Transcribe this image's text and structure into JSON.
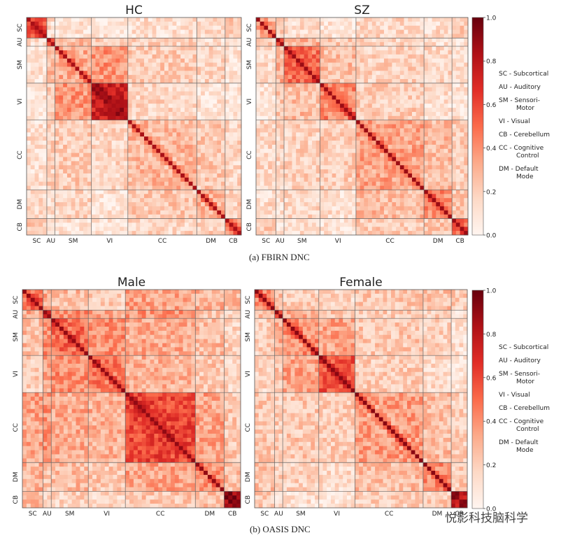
{
  "colors": {
    "cmap": [
      "#fff5f0",
      "#fdd9c6",
      "#fcaa8a",
      "#fb6b4b",
      "#e12d27",
      "#af1117",
      "#67000d"
    ],
    "grid": "#666666",
    "frame": "#555555"
  },
  "networks": [
    {
      "code": "SC",
      "n": 5
    },
    {
      "code": "AU",
      "n": 2
    },
    {
      "code": "SM",
      "n": 9
    },
    {
      "code": "VI",
      "n": 9
    },
    {
      "code": "CC",
      "n": 17
    },
    {
      "code": "DM",
      "n": 7
    },
    {
      "code": "CB",
      "n": 4
    }
  ],
  "legend": [
    {
      "code": "SC",
      "label": "SC - Subcortical"
    },
    {
      "code": "AU",
      "label": "AU - Auditory"
    },
    {
      "code": "SM",
      "label": "SM - Sensori-",
      "cont": "Motor"
    },
    {
      "code": "VI",
      "label": "VI - Visual"
    },
    {
      "code": "CB",
      "label": "CB - Cerebellum"
    },
    {
      "code": "CC",
      "label": "CC - Cognitive",
      "cont": "Control"
    },
    {
      "code": "DM",
      "label": "DM - Default",
      "cont": "Mode"
    }
  ],
  "captions": {
    "a": "(a) FBIRN DNC",
    "b": "(b) OASIS DNC"
  },
  "watermark": "悦影科技脑科学",
  "chart_data": [
    {
      "type": "heatmap",
      "title": "HC",
      "row_labels": [
        "SC",
        "AU",
        "SM",
        "VI",
        "CC",
        "DM",
        "CB"
      ],
      "col_labels": [
        "SC",
        "AU",
        "SM",
        "VI",
        "CC",
        "DM",
        "CB"
      ],
      "block_values": [
        [
          0.52,
          0.12,
          0.1,
          0.09,
          0.12,
          0.14,
          0.22
        ],
        [
          0.12,
          0.45,
          0.28,
          0.2,
          0.18,
          0.12,
          0.08
        ],
        [
          0.1,
          0.28,
          0.32,
          0.38,
          0.2,
          0.16,
          0.1
        ],
        [
          0.09,
          0.2,
          0.38,
          0.72,
          0.16,
          0.1,
          0.08
        ],
        [
          0.12,
          0.18,
          0.2,
          0.16,
          0.28,
          0.22,
          0.16
        ],
        [
          0.14,
          0.12,
          0.16,
          0.1,
          0.22,
          0.3,
          0.18
        ],
        [
          0.22,
          0.08,
          0.1,
          0.08,
          0.16,
          0.18,
          0.4
        ]
      ],
      "diagonal": 0.85,
      "colorbar": {
        "range": [
          0.0,
          1.0
        ],
        "ticks": [
          0.0,
          0.2,
          0.4,
          0.6,
          0.8,
          1.0
        ]
      }
    },
    {
      "type": "heatmap",
      "title": "SZ",
      "row_labels": [
        "SC",
        "AU",
        "SM",
        "VI",
        "CC",
        "DM",
        "CB"
      ],
      "col_labels": [
        "SC",
        "AU",
        "SM",
        "VI",
        "CC",
        "DM",
        "CB"
      ],
      "block_values": [
        [
          0.3,
          0.18,
          0.14,
          0.1,
          0.16,
          0.14,
          0.22
        ],
        [
          0.18,
          0.45,
          0.3,
          0.2,
          0.16,
          0.12,
          0.1
        ],
        [
          0.14,
          0.3,
          0.48,
          0.26,
          0.18,
          0.16,
          0.12
        ],
        [
          0.1,
          0.2,
          0.26,
          0.42,
          0.2,
          0.12,
          0.1
        ],
        [
          0.16,
          0.16,
          0.18,
          0.2,
          0.34,
          0.26,
          0.2
        ],
        [
          0.14,
          0.12,
          0.16,
          0.12,
          0.26,
          0.42,
          0.22
        ],
        [
          0.22,
          0.1,
          0.12,
          0.1,
          0.2,
          0.22,
          0.5
        ]
      ],
      "diagonal": 0.88,
      "colorbar": {
        "range": [
          0.0,
          1.0
        ],
        "ticks": [
          0.0,
          0.2,
          0.4,
          0.6,
          0.8,
          1.0
        ]
      }
    },
    {
      "type": "heatmap",
      "title": "Male",
      "row_labels": [
        "SC",
        "AU",
        "SM",
        "VI",
        "CC",
        "DM",
        "CB"
      ],
      "col_labels": [
        "SC",
        "AU",
        "SM",
        "VI",
        "CC",
        "DM",
        "CB"
      ],
      "block_values": [
        [
          0.48,
          0.32,
          0.26,
          0.2,
          0.34,
          0.3,
          0.28
        ],
        [
          0.32,
          0.7,
          0.4,
          0.34,
          0.38,
          0.24,
          0.16
        ],
        [
          0.26,
          0.4,
          0.5,
          0.4,
          0.32,
          0.26,
          0.18
        ],
        [
          0.2,
          0.34,
          0.4,
          0.46,
          0.3,
          0.22,
          0.16
        ],
        [
          0.34,
          0.38,
          0.32,
          0.3,
          0.6,
          0.34,
          0.22
        ],
        [
          0.3,
          0.24,
          0.26,
          0.22,
          0.34,
          0.38,
          0.24
        ],
        [
          0.28,
          0.16,
          0.18,
          0.16,
          0.22,
          0.24,
          0.78
        ]
      ],
      "diagonal": 0.9,
      "colorbar": null
    },
    {
      "type": "heatmap",
      "title": "Female",
      "row_labels": [
        "SC",
        "AU",
        "SM",
        "VI",
        "CC",
        "DM",
        "CB"
      ],
      "col_labels": [
        "SC",
        "AU",
        "SM",
        "VI",
        "CC",
        "DM",
        "CB"
      ],
      "block_values": [
        [
          0.4,
          0.26,
          0.2,
          0.16,
          0.22,
          0.24,
          0.2
        ],
        [
          0.26,
          0.55,
          0.32,
          0.24,
          0.2,
          0.18,
          0.12
        ],
        [
          0.2,
          0.32,
          0.4,
          0.34,
          0.22,
          0.18,
          0.12
        ],
        [
          0.16,
          0.24,
          0.34,
          0.55,
          0.2,
          0.14,
          0.1
        ],
        [
          0.22,
          0.2,
          0.22,
          0.2,
          0.36,
          0.26,
          0.18
        ],
        [
          0.24,
          0.18,
          0.18,
          0.14,
          0.26,
          0.42,
          0.2
        ],
        [
          0.2,
          0.12,
          0.12,
          0.1,
          0.18,
          0.2,
          0.72
        ]
      ],
      "diagonal": 0.92,
      "colorbar": {
        "range": [
          0.0,
          1.0
        ],
        "ticks": [
          0.0,
          0.2,
          0.4,
          0.6,
          0.8,
          1.0
        ]
      }
    }
  ]
}
